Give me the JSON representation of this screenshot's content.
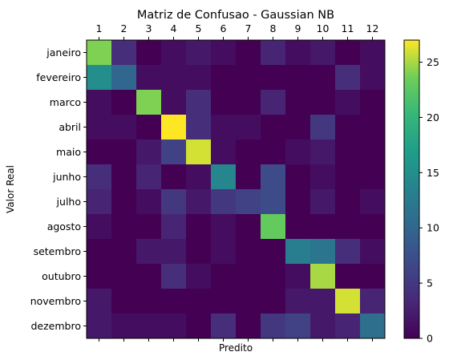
{
  "chart_data": {
    "type": "heatmap",
    "title": "Matriz de Confusao - Gaussian NB",
    "xlabel": "Predito",
    "ylabel": "Valor Real",
    "x_tick_labels": [
      "1",
      "2",
      "3",
      "4",
      "5",
      "6",
      "7",
      "8",
      "9",
      "10",
      "11",
      "12"
    ],
    "y_tick_labels": [
      "janeiro",
      "fevereiro",
      "marco",
      "abril",
      "maio",
      "junho",
      "julho",
      "agosto",
      "setembro",
      "outubro",
      "novembro",
      "dezembro"
    ],
    "matrix": [
      [
        24,
        4,
        0,
        1,
        2,
        1,
        0,
        3,
        1,
        2,
        0,
        1
      ],
      [
        15,
        10,
        1,
        1,
        1,
        0,
        0,
        0,
        0,
        0,
        4,
        1
      ],
      [
        1,
        0,
        24,
        1,
        4,
        0,
        0,
        3,
        0,
        0,
        1,
        0
      ],
      [
        1,
        1,
        0,
        27,
        4,
        1,
        1,
        0,
        0,
        5,
        0,
        0
      ],
      [
        0,
        0,
        2,
        6,
        26,
        1,
        0,
        0,
        1,
        2,
        0,
        0
      ],
      [
        4,
        0,
        3,
        0,
        1,
        14,
        0,
        7,
        0,
        1,
        0,
        0
      ],
      [
        3,
        0,
        1,
        5,
        2,
        5,
        6,
        7,
        0,
        2,
        0,
        1
      ],
      [
        1,
        0,
        0,
        3,
        0,
        1,
        0,
        23,
        0,
        0,
        0,
        0
      ],
      [
        0,
        0,
        2,
        2,
        0,
        1,
        0,
        0,
        13,
        12,
        4,
        1
      ],
      [
        0,
        0,
        0,
        4,
        1,
        0,
        0,
        0,
        1,
        25,
        0,
        0
      ],
      [
        2,
        0,
        0,
        0,
        0,
        0,
        0,
        0,
        2,
        2,
        26,
        3
      ],
      [
        2,
        1,
        1,
        1,
        0,
        4,
        0,
        5,
        6,
        2,
        3,
        11
      ]
    ],
    "colormap": "viridis",
    "vmin": 0,
    "vmax": 27,
    "colorbar_ticks": [
      0,
      5,
      10,
      15,
      20,
      25
    ],
    "grid": false,
    "legend": "colorbar-right"
  }
}
